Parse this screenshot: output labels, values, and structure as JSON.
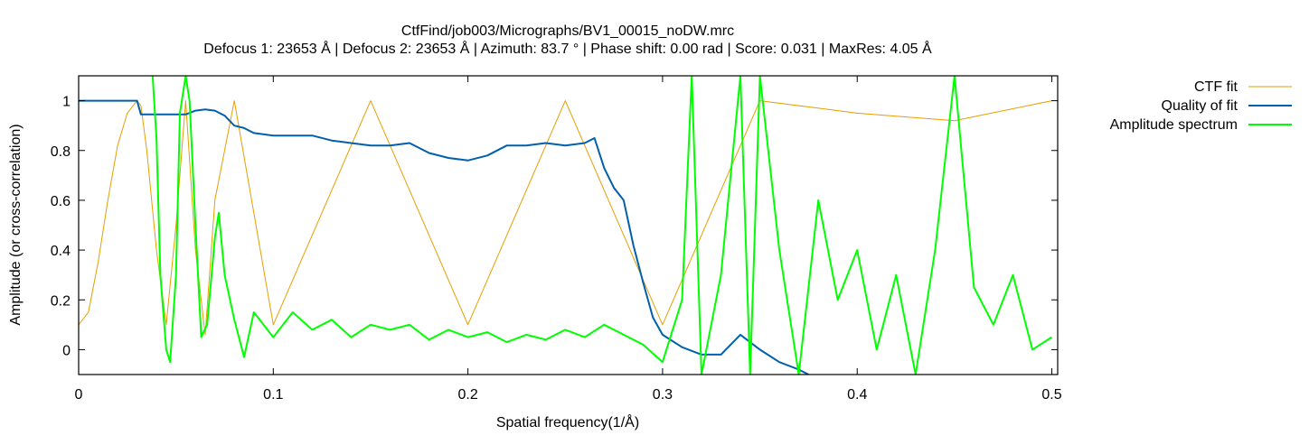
{
  "chart_data": {
    "type": "line",
    "title": "CtfFind/job003/Micrographs/BV1_00015_noDW.mrc",
    "subtitle": "Defocus 1: 23653 Å | Defocus 2: 23653 Å | Azimuth: 83.7 ° | Phase shift: 0.00 rad | Score: 0.031 | MaxRes: 4.05 Å",
    "xlabel": "Spatial frequency(1/Å)",
    "ylabel": "Amplitude (or cross-correlation)",
    "xlim": [
      0,
      0.503
    ],
    "ylim": [
      -0.1,
      1.1
    ],
    "xticks": [
      {
        "v": 0,
        "label": "0"
      },
      {
        "v": 0.1,
        "label": "0.1"
      },
      {
        "v": 0.2,
        "label": "0.2"
      },
      {
        "v": 0.3,
        "label": "0.3"
      },
      {
        "v": 0.4,
        "label": "0.4"
      },
      {
        "v": 0.5,
        "label": "0.5"
      }
    ],
    "yticks": [
      {
        "v": 0,
        "label": "0"
      },
      {
        "v": 0.2,
        "label": "0.2"
      },
      {
        "v": 0.4,
        "label": "0.4"
      },
      {
        "v": 0.6,
        "label": "0.6"
      },
      {
        "v": 0.8,
        "label": "0.8"
      },
      {
        "v": 1,
        "label": "1"
      }
    ],
    "grid": false,
    "legend_position": "outside-top-right",
    "series": [
      {
        "name": "CTF fit",
        "color": "#e69f00",
        "x": [
          0,
          0.005,
          0.01,
          0.015,
          0.02,
          0.025,
          0.03,
          0.032,
          0.035,
          0.04,
          0.045,
          0.05,
          0.055,
          0.06,
          0.065,
          0.07,
          0.08,
          0.1,
          0.15,
          0.2,
          0.25,
          0.3,
          0.35,
          0.4,
          0.45,
          0.5
        ],
        "y": [
          0.1,
          0.15,
          0.35,
          0.6,
          0.82,
          0.95,
          1.0,
          0.98,
          0.8,
          0.4,
          0.1,
          0.5,
          1.0,
          0.4,
          0.06,
          0.6,
          1.0,
          0.1,
          1.0,
          0.1,
          1.0,
          0.1,
          1.0,
          0.95,
          0.92,
          1.0
        ]
      },
      {
        "name": "Quality of fit",
        "color": "#0060ad",
        "x": [
          0,
          0.03,
          0.032,
          0.04,
          0.05,
          0.055,
          0.06,
          0.065,
          0.07,
          0.075,
          0.08,
          0.085,
          0.09,
          0.1,
          0.11,
          0.12,
          0.13,
          0.14,
          0.15,
          0.16,
          0.17,
          0.18,
          0.19,
          0.2,
          0.21,
          0.22,
          0.23,
          0.24,
          0.25,
          0.26,
          0.265,
          0.27,
          0.275,
          0.28,
          0.285,
          0.29,
          0.295,
          0.3,
          0.31,
          0.32,
          0.33,
          0.34,
          0.35,
          0.36,
          0.37,
          0.375
        ],
        "y": [
          1.0,
          1.0,
          0.945,
          0.945,
          0.945,
          0.945,
          0.96,
          0.965,
          0.96,
          0.94,
          0.9,
          0.89,
          0.87,
          0.86,
          0.86,
          0.86,
          0.84,
          0.83,
          0.82,
          0.82,
          0.83,
          0.79,
          0.77,
          0.76,
          0.78,
          0.82,
          0.82,
          0.83,
          0.82,
          0.83,
          0.85,
          0.73,
          0.65,
          0.6,
          0.42,
          0.27,
          0.13,
          0.06,
          0.01,
          -0.02,
          -0.02,
          0.06,
          0.0,
          -0.05,
          -0.08,
          -0.1
        ]
      },
      {
        "name": "Amplitude spectrum",
        "color": "#00ff00",
        "x": [
          0.038,
          0.04,
          0.042,
          0.045,
          0.047,
          0.05,
          0.052,
          0.055,
          0.057,
          0.06,
          0.063,
          0.066,
          0.07,
          0.072,
          0.075,
          0.08,
          0.085,
          0.09,
          0.1,
          0.11,
          0.12,
          0.13,
          0.14,
          0.15,
          0.16,
          0.17,
          0.18,
          0.19,
          0.2,
          0.21,
          0.22,
          0.23,
          0.24,
          0.25,
          0.26,
          0.27,
          0.28,
          0.29,
          0.3,
          0.31,
          0.315,
          0.32,
          0.33,
          0.34,
          0.345,
          0.35,
          0.36,
          0.37,
          0.38,
          0.39,
          0.4,
          0.41,
          0.42,
          0.43,
          0.44,
          0.45,
          0.46,
          0.47,
          0.48,
          0.49,
          0.5
        ],
        "y": [
          1.1,
          0.85,
          0.3,
          0.0,
          -0.05,
          0.3,
          0.95,
          1.1,
          1.0,
          0.5,
          0.05,
          0.1,
          0.45,
          0.55,
          0.3,
          0.12,
          -0.03,
          0.15,
          0.05,
          0.15,
          0.08,
          0.12,
          0.05,
          0.1,
          0.08,
          0.1,
          0.04,
          0.08,
          0.05,
          0.07,
          0.03,
          0.06,
          0.04,
          0.08,
          0.05,
          0.1,
          0.06,
          0.02,
          -0.05,
          0.2,
          1.1,
          -0.1,
          0.3,
          1.1,
          -0.1,
          1.1,
          0.4,
          -0.1,
          0.6,
          0.2,
          0.4,
          0.0,
          0.3,
          -0.1,
          0.4,
          1.1,
          0.25,
          0.1,
          0.3,
          0.0,
          0.05
        ]
      }
    ]
  }
}
